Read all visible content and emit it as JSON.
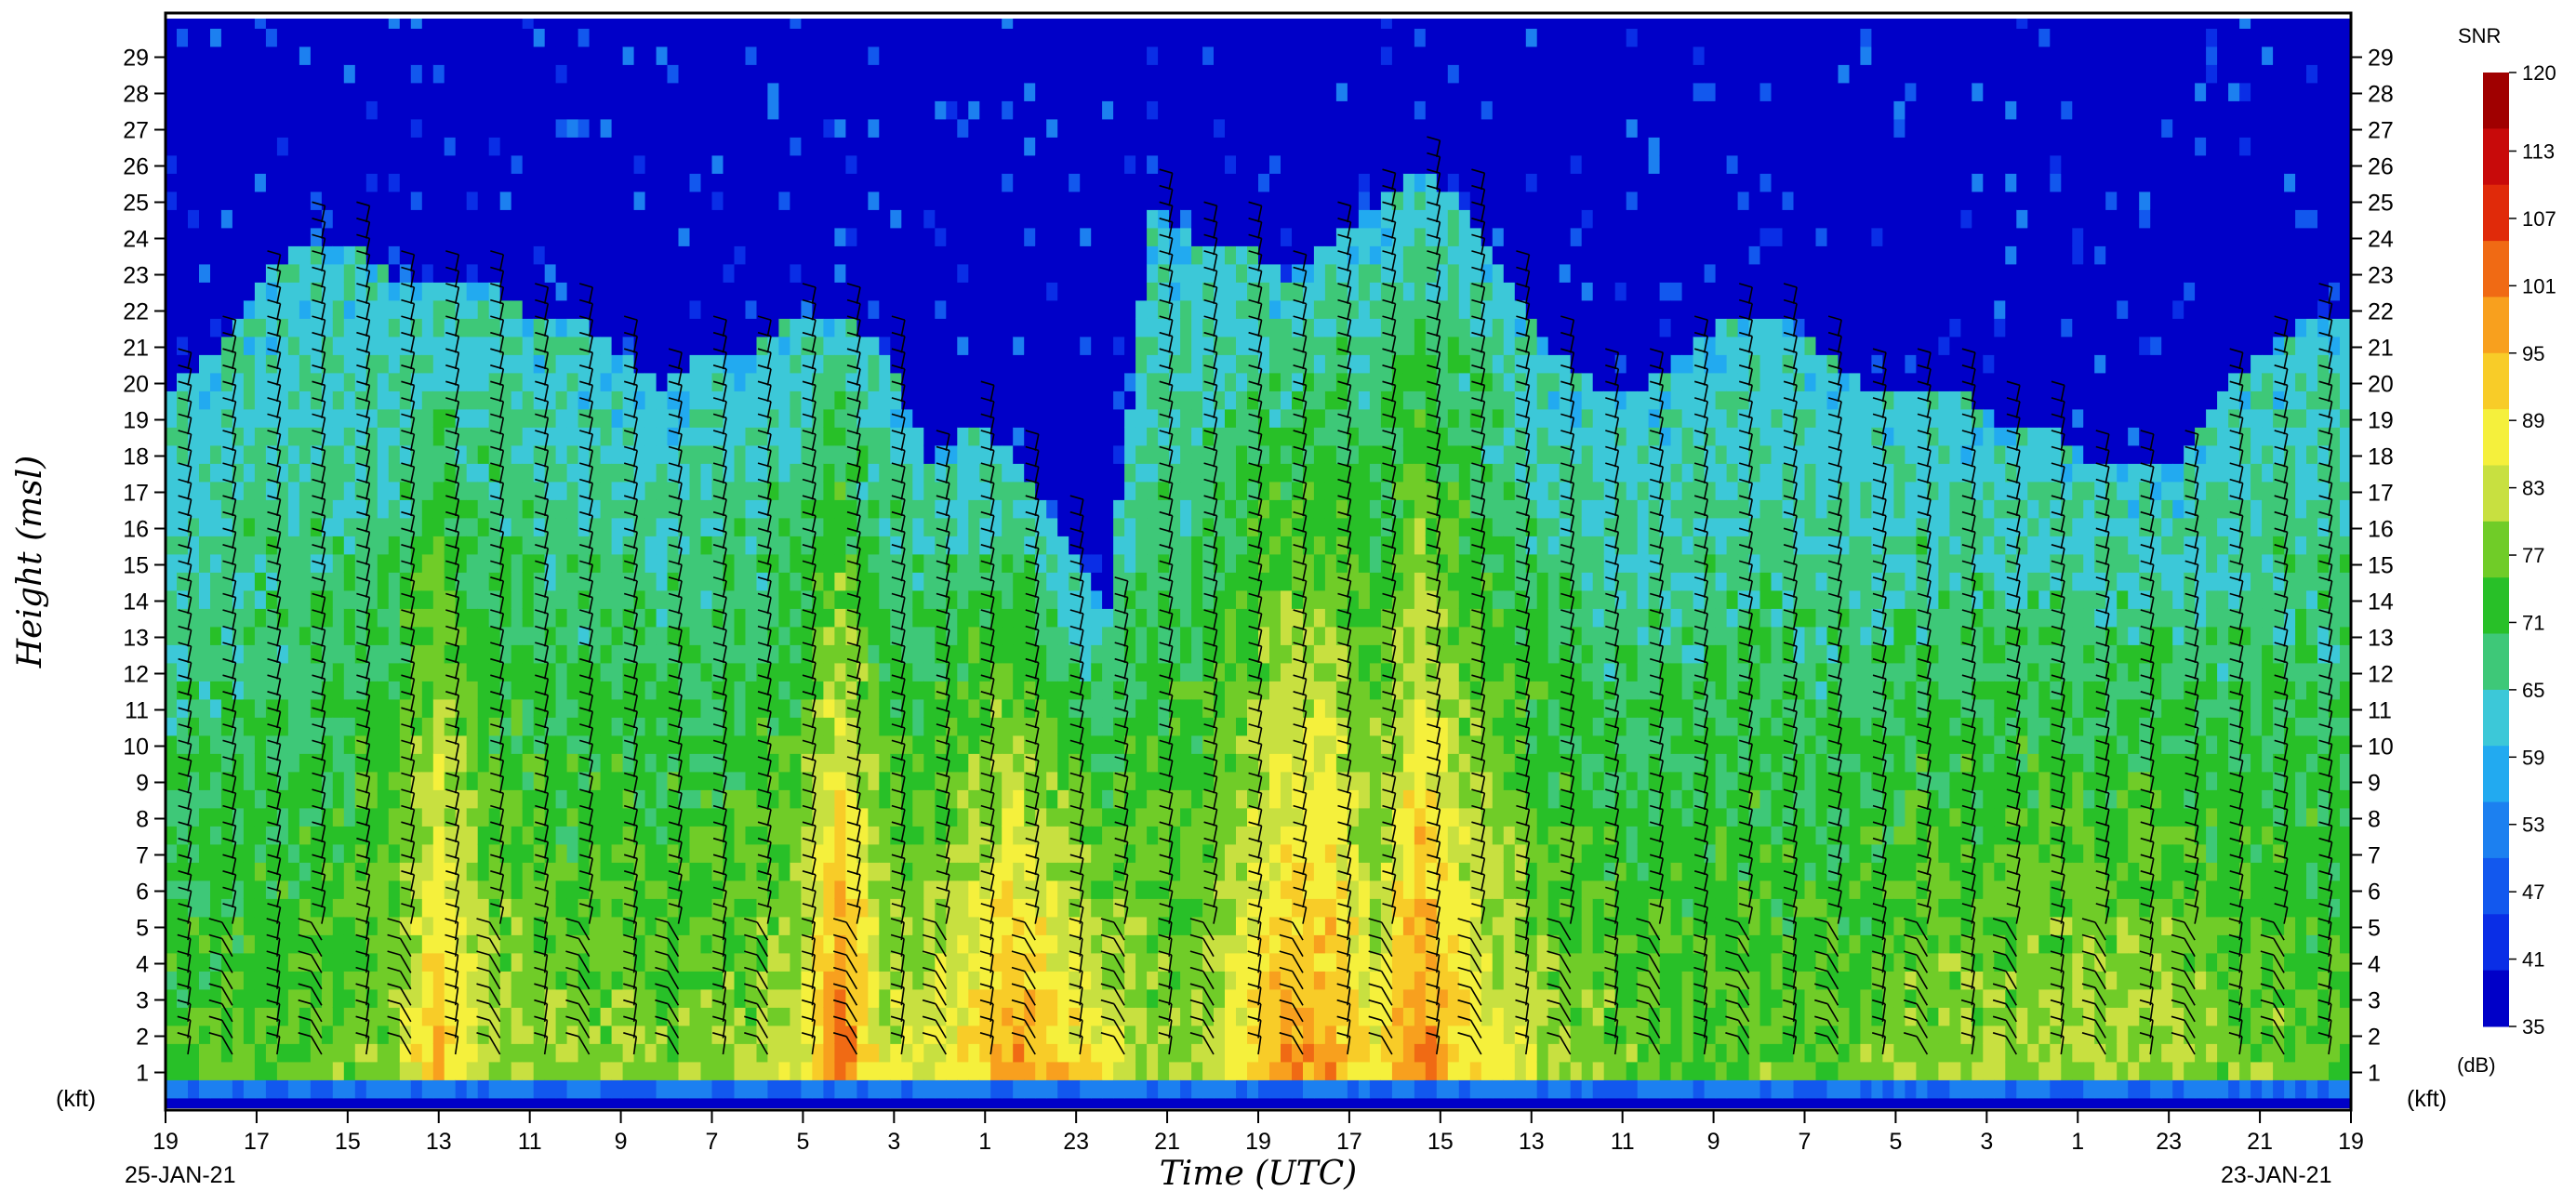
{
  "chart_data": {
    "type": "heatmap",
    "title": "",
    "xlabel": "Time (UTC)",
    "ylabel": "Height (msl)",
    "y_unit_label": "(kft)",
    "x_tick_labels": [
      "19",
      "17",
      "15",
      "13",
      "11",
      "9",
      "7",
      "5",
      "3",
      "1",
      "23",
      "21",
      "19",
      "17",
      "15",
      "13",
      "11",
      "9",
      "7",
      "5",
      "3",
      "1",
      "23",
      "21",
      "19"
    ],
    "date_left": "25-JAN-21",
    "date_right": "23-JAN-21",
    "y_ticks": [
      1,
      2,
      3,
      4,
      5,
      6,
      7,
      8,
      9,
      10,
      11,
      12,
      13,
      14,
      15,
      16,
      17,
      18,
      19,
      20,
      21,
      22,
      23,
      24,
      25,
      26,
      27,
      28,
      29
    ],
    "ylim": [
      0.3,
      30
    ],
    "colorbar": {
      "title": "SNR",
      "unit": "(dB)",
      "ticks": [
        35,
        41,
        47,
        53,
        59,
        65,
        71,
        77,
        83,
        89,
        95,
        101,
        107,
        113,
        120
      ],
      "colors": [
        "#0000c8",
        "#0a2ee6",
        "#1258ee",
        "#1c80f0",
        "#22aaf0",
        "#3cc8d8",
        "#3ec878",
        "#28c028",
        "#70cc28",
        "#c8e040",
        "#f5f03c",
        "#f8cc28",
        "#f8a01e",
        "#f06a14",
        "#e02a0a",
        "#c80a0a",
        "#a00000"
      ]
    },
    "columns": [
      {
        "time": "19",
        "top": 20,
        "peak": 74
      },
      {
        "time": "18",
        "top": 21,
        "peak": 75
      },
      {
        "time": "17",
        "top": 23,
        "peak": 76
      },
      {
        "time": "16",
        "top": 24,
        "peak": 76
      },
      {
        "time": "15",
        "top": 24,
        "peak": 77
      },
      {
        "time": "14",
        "top": 23,
        "peak": 80
      },
      {
        "time": "13",
        "top": 23,
        "peak": 96
      },
      {
        "time": "12",
        "top": 23,
        "peak": 82
      },
      {
        "time": "11",
        "top": 22,
        "peak": 80
      },
      {
        "time": "10",
        "top": 22,
        "peak": 78
      },
      {
        "time": "9",
        "top": 21,
        "peak": 80
      },
      {
        "time": "8",
        "top": 20,
        "peak": 78
      },
      {
        "time": "7",
        "top": 21,
        "peak": 79
      },
      {
        "time": "6",
        "top": 21,
        "peak": 80
      },
      {
        "time": "5",
        "top": 22,
        "peak": 84
      },
      {
        "time": "4",
        "top": 22,
        "peak": 104
      },
      {
        "time": "3",
        "top": 21,
        "peak": 84
      },
      {
        "time": "2",
        "top": 18,
        "peak": 86
      },
      {
        "time": "1",
        "top": 19,
        "peak": 92
      },
      {
        "time": "0",
        "top": 18,
        "peak": 100
      },
      {
        "time": "23",
        "top": 16,
        "peak": 92
      },
      {
        "time": "22",
        "top": 14,
        "peak": 88
      },
      {
        "time": "21",
        "top": 25,
        "peak": 80
      },
      {
        "time": "20",
        "top": 24,
        "peak": 80
      },
      {
        "time": "19",
        "top": 24,
        "peak": 88
      },
      {
        "time": "18",
        "top": 23,
        "peak": 100
      },
      {
        "time": "17",
        "top": 24,
        "peak": 98
      },
      {
        "time": "16",
        "top": 25,
        "peak": 86
      },
      {
        "time": "15",
        "top": 26,
        "peak": 102
      },
      {
        "time": "14",
        "top": 25,
        "peak": 90
      },
      {
        "time": "13",
        "top": 23,
        "peak": 85
      },
      {
        "time": "12",
        "top": 21,
        "peak": 80
      },
      {
        "time": "11",
        "top": 20,
        "peak": 79
      },
      {
        "time": "10",
        "top": 20,
        "peak": 76
      },
      {
        "time": "9",
        "top": 21,
        "peak": 76
      },
      {
        "time": "8",
        "top": 22,
        "peak": 77
      },
      {
        "time": "7",
        "top": 22,
        "peak": 77
      },
      {
        "time": "6",
        "top": 21,
        "peak": 76
      },
      {
        "time": "5",
        "top": 20,
        "peak": 77
      },
      {
        "time": "4",
        "top": 20,
        "peak": 80
      },
      {
        "time": "3",
        "top": 20,
        "peak": 80
      },
      {
        "time": "2",
        "top": 19,
        "peak": 80
      },
      {
        "time": "1",
        "top": 19,
        "peak": 82
      },
      {
        "time": "0",
        "top": 18,
        "peak": 82
      },
      {
        "time": "23",
        "top": 18,
        "peak": 82
      },
      {
        "time": "22",
        "top": 18,
        "peak": 82
      },
      {
        "time": "21",
        "top": 20,
        "peak": 78
      },
      {
        "time": "20",
        "top": 21,
        "peak": 78
      },
      {
        "time": "19",
        "top": 22,
        "peak": 76
      }
    ]
  }
}
